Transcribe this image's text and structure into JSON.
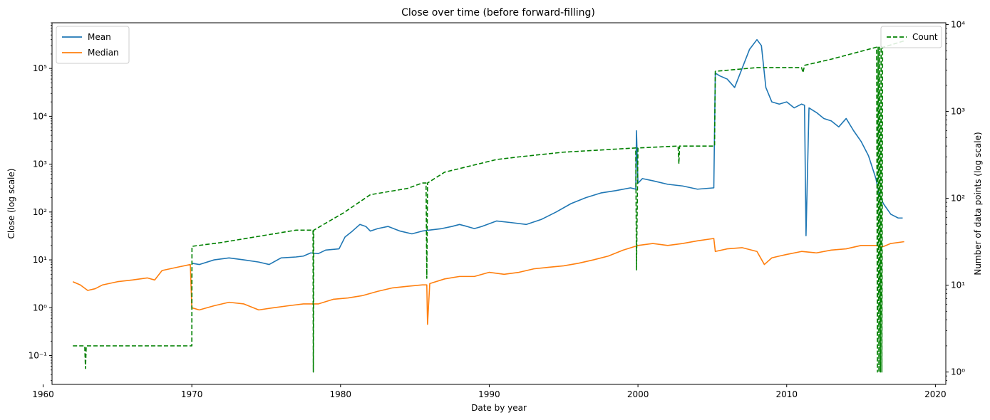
{
  "chart_data": {
    "type": "line",
    "title": "Close over time (before forward-filling)",
    "xlabel": "Date by year",
    "ylabel": "Close (log scale)",
    "y2label": "Number of data points (log scale)",
    "xlim": [
      1960.6,
      2020.7
    ],
    "ylim": [
      0.025,
      900000
    ],
    "y2lim": [
      0.72,
      10500
    ],
    "yscale": "log",
    "y2scale": "log",
    "grid": false,
    "x_ticks": [
      1960,
      1970,
      1980,
      1990,
      2000,
      2010,
      2020
    ],
    "y_ticks": [
      0.1,
      1,
      10,
      100,
      1000,
      10000,
      100000
    ],
    "y_tick_labels": [
      "10⁻¹",
      "10⁰",
      "10¹",
      "10²",
      "10³",
      "10⁴",
      "10⁵"
    ],
    "y2_ticks": [
      1,
      10,
      100,
      1000,
      10000
    ],
    "y2_tick_labels": [
      "10⁰",
      "10¹",
      "10²",
      "10³",
      "10⁴"
    ],
    "legend_left": {
      "position": "upper-left",
      "entries": [
        "Mean",
        "Median"
      ]
    },
    "legend_right": {
      "position": "upper-right",
      "entries": [
        "Count"
      ]
    },
    "series": [
      {
        "name": "Mean",
        "axis": "left",
        "color": "#1f77b4",
        "style": "solid",
        "x": [
          1970.0,
          1970.5,
          1971.5,
          1972.5,
          1973.5,
          1974.5,
          1975.2,
          1976.0,
          1977.0,
          1977.5,
          1978.0,
          1978.5,
          1979.0,
          1979.9,
          1980.3,
          1980.8,
          1981.3,
          1981.7,
          1982.0,
          1982.5,
          1983.2,
          1984.0,
          1984.8,
          1985.5,
          1986.0,
          1986.8,
          1987.5,
          1988.0,
          1988.5,
          1989.0,
          1989.5,
          1990.5,
          1991.5,
          1992.5,
          1993.5,
          1994.5,
          1995.5,
          1996.5,
          1997.5,
          1998.5,
          1999.5,
          1999.85,
          1999.9,
          2000.0,
          2000.3,
          2001.0,
          2002.0,
          2003.0,
          2004.0,
          2005.1,
          2005.2,
          2005.5,
          2006.0,
          2006.5,
          2007.0,
          2007.5,
          2008.0,
          2008.3,
          2008.6,
          2009.0,
          2009.5,
          2010.0,
          2010.5,
          2011.0,
          2011.2,
          2011.3,
          2011.5,
          2012.0,
          2012.5,
          2013.0,
          2013.5,
          2014.0,
          2014.5,
          2015.0,
          2015.5,
          2016.0,
          2016.2,
          2016.5,
          2017.0,
          2017.5,
          2017.8
        ],
        "y": [
          8.5,
          8.0,
          10.0,
          11.0,
          10.0,
          9.0,
          8.0,
          11.0,
          11.5,
          12.0,
          14.0,
          13.5,
          16.0,
          17.0,
          30.0,
          40.0,
          55.0,
          50.0,
          40.0,
          45.0,
          50.0,
          40.0,
          35.0,
          40.0,
          42.0,
          45.0,
          50.0,
          55.0,
          50.0,
          45.0,
          50.0,
          65.0,
          60.0,
          55.0,
          70.0,
          100.0,
          150.0,
          200.0,
          250.0,
          280.0,
          320.0,
          300.0,
          5000.0,
          400.0,
          500.0,
          450.0,
          380.0,
          350.0,
          300.0,
          320.0,
          80000.0,
          70000.0,
          60000.0,
          40000.0,
          100000.0,
          250000.0,
          400000.0,
          300000.0,
          40000.0,
          20000.0,
          18000.0,
          20000.0,
          15000.0,
          18000.0,
          17000.0,
          32.0,
          15000.0,
          12000.0,
          9000.0,
          8000.0,
          6000.0,
          9000.0,
          5000.0,
          3000.0,
          1500.0,
          500.0,
          250.0,
          150.0,
          90.0,
          75.0,
          75.0
        ]
      },
      {
        "name": "Median",
        "axis": "left",
        "color": "#ff7f0e",
        "style": "solid",
        "x": [
          1962.0,
          1962.5,
          1963.0,
          1963.5,
          1964.0,
          1965.0,
          1966.0,
          1967.0,
          1967.5,
          1968.0,
          1969.0,
          1969.9,
          1970.0,
          1970.5,
          1971.5,
          1972.5,
          1973.5,
          1974.5,
          1975.5,
          1976.5,
          1977.5,
          1978.5,
          1979.5,
          1980.5,
          1981.5,
          1982.5,
          1983.5,
          1984.5,
          1985.5,
          1985.8,
          1985.85,
          1986.0,
          1987.0,
          1988.0,
          1989.0,
          1990.0,
          1991.0,
          1992.0,
          1993.0,
          1994.0,
          1995.0,
          1996.0,
          1997.0,
          1998.0,
          1999.0,
          2000.0,
          2001.0,
          2002.0,
          2003.0,
          2004.0,
          2005.1,
          2005.2,
          2006.0,
          2007.0,
          2008.0,
          2008.5,
          2009.0,
          2009.5,
          2010.0,
          2011.0,
          2012.0,
          2013.0,
          2014.0,
          2015.0,
          2016.0,
          2016.3,
          2016.5,
          2017.0,
          2017.9
        ],
        "y": [
          3.5,
          3.0,
          2.3,
          2.5,
          3.0,
          3.5,
          3.8,
          4.2,
          3.8,
          6.0,
          7.0,
          8.0,
          1.0,
          0.9,
          1.1,
          1.3,
          1.2,
          0.9,
          1.0,
          1.1,
          1.2,
          1.2,
          1.5,
          1.6,
          1.8,
          2.2,
          2.6,
          2.8,
          3.0,
          3.0,
          0.45,
          3.2,
          4.0,
          4.5,
          4.5,
          5.5,
          5.0,
          5.5,
          6.5,
          7.0,
          7.5,
          8.5,
          10.0,
          12.0,
          16.0,
          20.0,
          22.0,
          20.0,
          22.0,
          25.0,
          28.0,
          15.0,
          17.0,
          18.0,
          15.0,
          8.0,
          11.0,
          12.0,
          13.0,
          15.0,
          14.0,
          16.0,
          17.0,
          20.0,
          20.0,
          19.0,
          19.0,
          22.0,
          24.0
        ]
      },
      {
        "name": "Count",
        "axis": "right",
        "color": "#008000",
        "style": "dashed",
        "x": [
          1962.0,
          1962.8,
          1962.85,
          1962.9,
          1970.0,
          1970.01,
          1972.0,
          1977.0,
          1978.15,
          1978.17,
          1978.2,
          1980.2,
          1982.0,
          1984.5,
          1985.5,
          1985.75,
          1985.8,
          1985.85,
          1987.0,
          1988.0,
          1990.5,
          1992.0,
          1995.0,
          1999.85,
          1999.9,
          2000.0,
          2002.7,
          2002.75,
          2002.8,
          2005.15,
          2005.2,
          2008.0,
          2011.0,
          2011.1,
          2011.2,
          2013.0,
          2016.05,
          2016.1,
          2016.15,
          2016.2,
          2016.25,
          2016.3,
          2016.35,
          2016.4,
          2016.45,
          2016.5,
          2017.9
        ],
        "y": [
          2.0,
          2.0,
          1.1,
          2.0,
          2.0,
          28.0,
          31.0,
          43.0,
          43.0,
          1.0,
          43.0,
          68.0,
          110.0,
          130.0,
          150.0,
          150.0,
          12.0,
          150.0,
          200.0,
          220.0,
          280.0,
          300.0,
          340.0,
          380.0,
          15.0,
          380.0,
          400.0,
          250.0,
          400.0,
          400.0,
          2900.0,
          3200.0,
          3200.0,
          2800.0,
          3400.0,
          4000.0,
          5500.0,
          1.0,
          5500.0,
          1.0,
          5500.0,
          1.0,
          5500.0,
          1.0,
          5500.0,
          5500.0,
          6500.0
        ]
      }
    ]
  }
}
